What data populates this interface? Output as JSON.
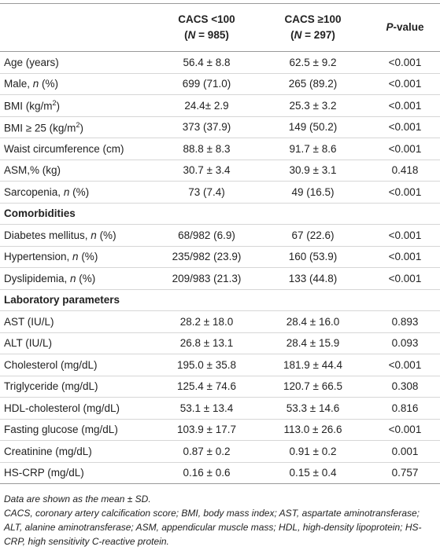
{
  "table": {
    "header": [
      [],
      [
        [
          {
            "text": "CACS <100"
          }
        ],
        [
          {
            "text": "("
          },
          {
            "text": "N",
            "italic": true
          },
          {
            "text": " = 985)"
          }
        ]
      ],
      [
        [
          {
            "text": "CACS ≥100"
          }
        ],
        [
          {
            "text": "("
          },
          {
            "text": "N",
            "italic": true
          },
          {
            "text": " = 297)"
          }
        ]
      ],
      [
        [
          {
            "text": "P",
            "italic": true
          },
          {
            "text": "-value"
          }
        ]
      ]
    ],
    "rows": [
      [
        "Age (years)",
        "56.4 ± 8.8",
        "62.5 ± 9.2",
        "<0.001"
      ],
      [
        [
          {
            "text": "Male, "
          },
          {
            "text": "n",
            "italic": true
          },
          {
            "text": " (%)"
          }
        ],
        "699 (71.0)",
        "265 (89.2)",
        "<0.001"
      ],
      [
        [
          {
            "text": "BMI (kg/m"
          },
          {
            "text": "2",
            "sup": true
          },
          {
            "text": ")"
          }
        ],
        "24.4± 2.9",
        "25.3 ± 3.2",
        "<0.001"
      ],
      [
        [
          {
            "text": "BMI ≥ 25 (kg/m"
          },
          {
            "text": "2",
            "sup": true
          },
          {
            "text": ")"
          }
        ],
        "373 (37.9)",
        "149 (50.2)",
        "<0.001"
      ],
      [
        "Waist circumference (cm)",
        "88.8 ± 8.3",
        "91.7 ± 8.6",
        "<0.001"
      ],
      [
        "ASM,% (kg)",
        "30.7 ± 3.4",
        "30.9 ± 3.1",
        "0.418"
      ],
      [
        [
          {
            "text": "Sarcopenia, "
          },
          {
            "text": "n",
            "italic": true
          },
          {
            "text": " (%)"
          }
        ],
        "73 (7.4)",
        "49 (16.5)",
        "<0.001"
      ],
      {
        "section": "Comorbidities"
      },
      [
        [
          {
            "text": "Diabetes mellitus, "
          },
          {
            "text": "n",
            "italic": true
          },
          {
            "text": " (%)"
          }
        ],
        "68/982 (6.9)",
        "67 (22.6)",
        "<0.001"
      ],
      [
        [
          {
            "text": "Hypertension, "
          },
          {
            "text": "n",
            "italic": true
          },
          {
            "text": " (%)"
          }
        ],
        "235/982 (23.9)",
        "160 (53.9)",
        "<0.001"
      ],
      [
        [
          {
            "text": "Dyslipidemia, "
          },
          {
            "text": "n",
            "italic": true
          },
          {
            "text": " (%)"
          }
        ],
        "209/983 (21.3)",
        "133 (44.8)",
        "<0.001"
      ],
      {
        "section": "Laboratory parameters"
      },
      [
        "AST (IU/L)",
        "28.2 ± 18.0",
        "28.4 ± 16.0",
        "0.893"
      ],
      [
        "ALT (IU/L)",
        "26.8 ± 13.1",
        "28.4 ± 15.9",
        "0.093"
      ],
      [
        "Cholesterol (mg/dL)",
        "195.0 ± 35.8",
        "181.9 ± 44.4",
        "<0.001"
      ],
      [
        "Triglyceride (mg/dL)",
        "125.4 ± 74.6",
        "120.7 ± 66.5",
        "0.308"
      ],
      [
        "HDL-cholesterol (mg/dL)",
        "53.1 ± 13.4",
        "53.3 ± 14.6",
        "0.816"
      ],
      [
        "Fasting glucose (mg/dL)",
        "103.9 ± 17.7",
        "113.0 ± 26.6",
        "<0.001"
      ],
      [
        "Creatinine (mg/dL)",
        "0.87 ± 0.2",
        "0.91 ± 0.2",
        "0.001"
      ],
      [
        "HS-CRP (mg/dL)",
        "0.16 ± 0.6",
        "0.15 ± 0.4",
        "0.757"
      ]
    ]
  },
  "footnotes": [
    "Data are shown as the mean ± SD.",
    "CACS, coronary artery calcification score; BMI, body mass index; AST, aspartate aminotransferase; ALT, alanine aminotransferase; ASM, appendicular muscle mass; HDL, high-density lipoprotein; HS-CRP, high sensitivity C-reactive protein."
  ]
}
